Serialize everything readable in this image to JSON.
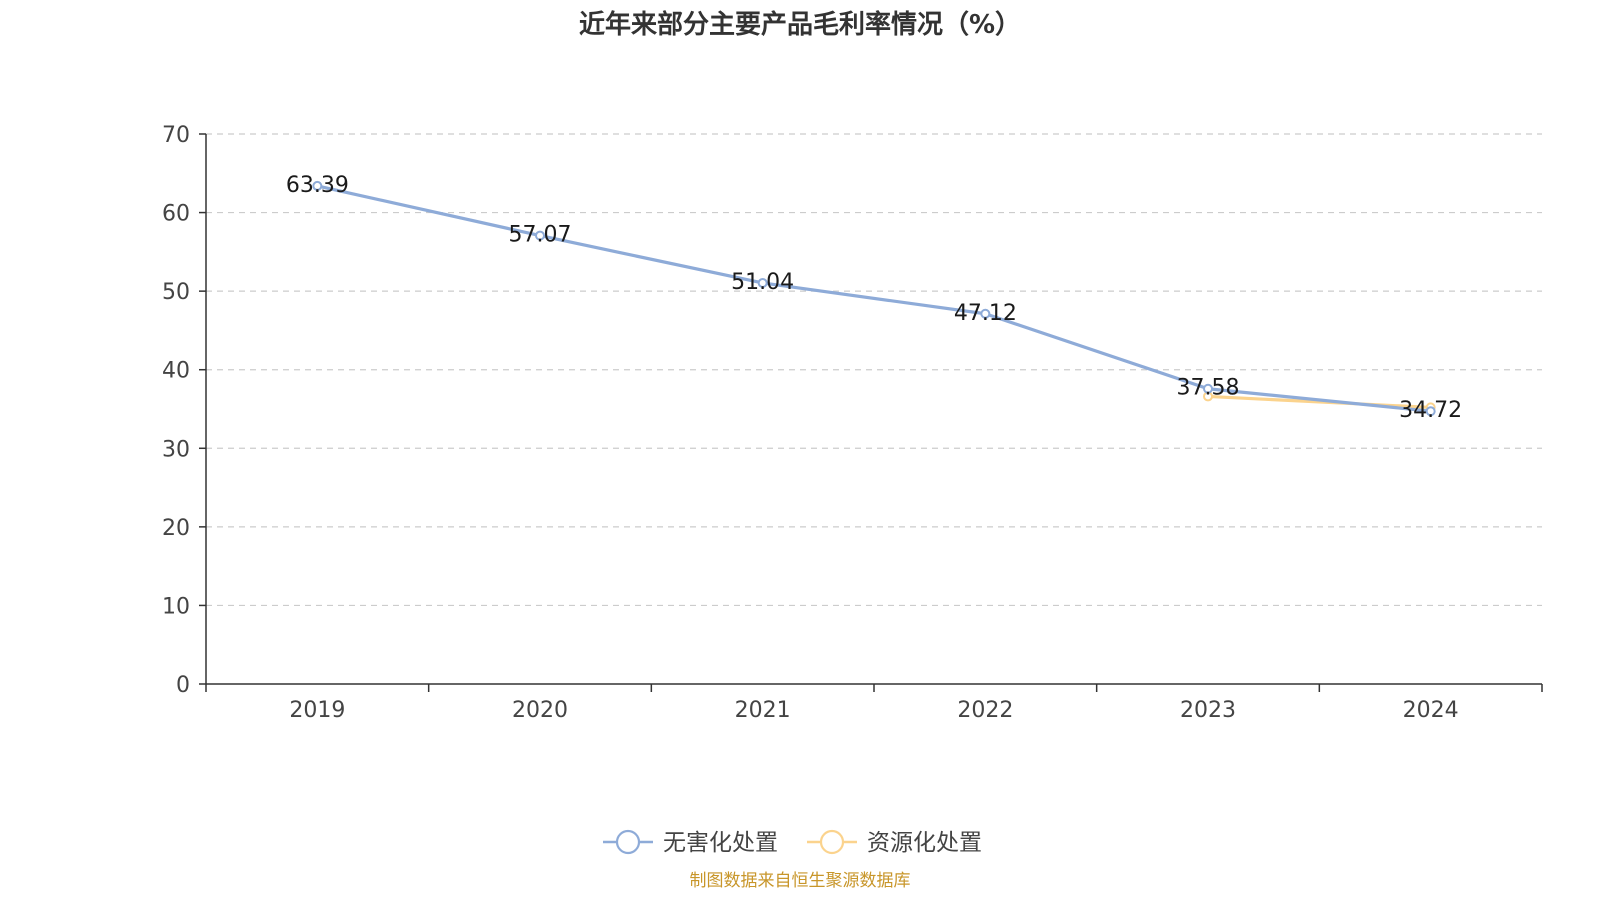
{
  "chart_data": {
    "type": "line",
    "title": "近年来部分主要产品毛利率情况（%）",
    "categories": [
      "2019",
      "2020",
      "2021",
      "2022",
      "2023",
      "2024"
    ],
    "series": [
      {
        "name": "无害化处置",
        "color": "#8eabd8",
        "values": [
          63.39,
          57.07,
          51.04,
          47.12,
          37.58,
          34.72
        ],
        "labels": [
          "63.39",
          "57.07",
          "51.04",
          "47.12",
          "37.58",
          "34.72"
        ]
      },
      {
        "name": "资源化处置",
        "color": "#fbd38d",
        "values": [
          null,
          null,
          null,
          null,
          36.6,
          35.2
        ],
        "labels": []
      }
    ],
    "ylim": [
      0,
      70
    ],
    "yticks": [
      0,
      10,
      20,
      30,
      40,
      50,
      60,
      70
    ],
    "grid": true,
    "legend": "bottom-center"
  },
  "source": {
    "text": "制图数据来自恒生聚源数据库",
    "color": "#c8962a"
  }
}
